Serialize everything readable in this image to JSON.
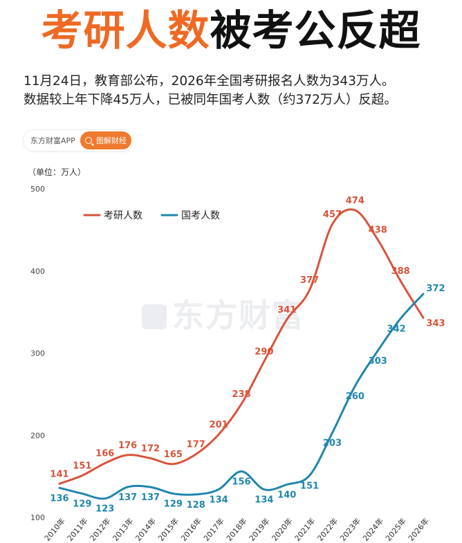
{
  "header": {
    "title_accent": "考研人数",
    "title_rest": "被考公反超",
    "subtitle_line1": "11月24日，教育部公布，2026年全国考研报名人数为343万人。",
    "subtitle_line2": "数据较上年下降45万人，已被同年国考人数（约372万人）反超。"
  },
  "brand": {
    "name": "东方财富APP",
    "tag_icon": "search-icon",
    "tag": "图解财经"
  },
  "watermark": {
    "text": "东方财富"
  },
  "colors": {
    "accent": "#ee6a24",
    "series_kaoyan": "#d9533a",
    "series_guokao": "#1f86ad"
  },
  "chart_data": {
    "type": "line",
    "unit_label": "（单位：万人）",
    "ylim": [
      100,
      500
    ],
    "yticks": [
      "100",
      "200",
      "300",
      "400",
      "500"
    ],
    "grid": false,
    "legend_position": "top-left",
    "categories": [
      "2010年",
      "2011年",
      "2012年",
      "2013年",
      "2014年",
      "2015年",
      "2016年",
      "2017年",
      "2018年",
      "2019年",
      "2020年",
      "2021年",
      "2022年",
      "2023年",
      "2024年",
      "2025年",
      "2026年"
    ],
    "series": [
      {
        "name": "考研人数",
        "color": "#d9533a",
        "values": [
          141,
          151,
          166,
          176,
          172,
          165,
          177,
          201,
          238,
          290,
          341,
          377,
          457,
          474,
          438,
          388,
          343
        ]
      },
      {
        "name": "国考人数",
        "color": "#1f86ad",
        "values": [
          136,
          129,
          123,
          137,
          137,
          129,
          128,
          134,
          156,
          134,
          140,
          151,
          203,
          260,
          303,
          342,
          372
        ]
      }
    ]
  }
}
